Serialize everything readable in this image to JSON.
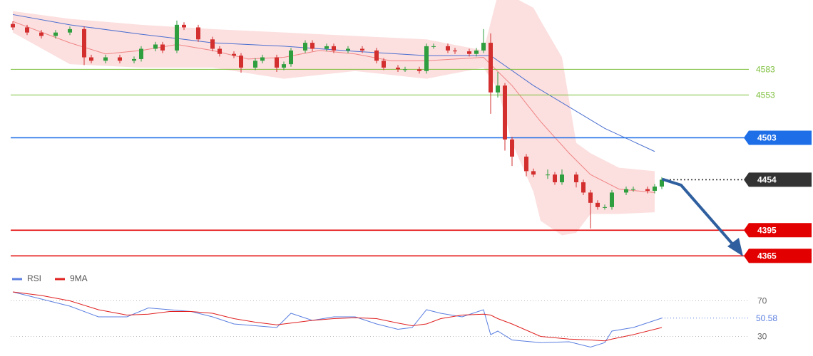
{
  "chart_data": [
    {
      "type": "candlestick",
      "xlim": [
        -0.3,
        112.2
      ],
      "ylim": [
        4347,
        4664
      ],
      "candles": {
        "x": [
          0,
          2,
          4,
          6,
          8,
          10,
          11,
          13,
          15,
          17,
          18,
          20,
          21,
          23,
          24,
          26,
          28,
          29,
          31,
          32,
          34,
          35,
          37,
          38,
          39,
          41,
          42,
          44,
          45,
          47,
          49,
          51,
          52,
          54,
          55,
          57,
          58,
          59,
          61,
          62,
          64,
          65,
          66,
          67,
          68,
          69,
          70,
          72,
          73,
          75,
          76,
          77,
          79,
          80,
          81,
          82,
          83,
          84,
          86,
          87,
          89,
          90,
          91
        ],
        "open": [
          4636,
          4632,
          4626,
          4622,
          4626,
          4630,
          4597,
          4593,
          4597,
          4593,
          4595,
          4607,
          4612,
          4605,
          4635,
          4632,
          4618,
          4607,
          4601,
          4599,
          4585,
          4593,
          4597,
          4585,
          4589,
          4605,
          4614,
          4607,
          4610,
          4605,
          4607,
          4605,
          4593,
          4585,
          4583,
          4583,
          4581,
          4610,
          4610,
          4605,
          4604,
          4601,
          4605,
          4614,
          4556,
          4564,
          4501,
          4481,
          4464,
          4460,
          4460,
          4451,
          4460,
          4451,
          4439,
          4427,
          4422,
          4422,
          4439,
          4443,
          4443,
          4441,
          4446
        ],
        "high": [
          4639,
          4635,
          4629,
          4629,
          4633,
          4633,
          4600,
          4600,
          4600,
          4598,
          4610,
          4615,
          4615,
          4640,
          4638,
          4635,
          4621,
          4610,
          4604,
          4602,
          4596,
          4600,
          4600,
          4592,
          4608,
          4617,
          4617,
          4613,
          4613,
          4610,
          4610,
          4608,
          4596,
          4588,
          4586,
          4586,
          4613,
          4613,
          4613,
          4608,
          4607,
          4608,
          4630,
          4625,
          4580,
          4567,
          4504,
          4484,
          4467,
          4466,
          4463,
          4466,
          4463,
          4454,
          4442,
          4430,
          4425,
          4442,
          4446,
          4446,
          4446,
          4449,
          4457
        ],
        "low": [
          4629,
          4623,
          4619,
          4619,
          4623,
          4588,
          4590,
          4590,
          4590,
          4590,
          4592,
          4604,
          4602,
          4602,
          4629,
          4615,
          4604,
          4598,
          4596,
          4579,
          4582,
          4590,
          4580,
          4582,
          4586,
          4602,
          4604,
          4604,
          4602,
          4602,
          4602,
          4590,
          4582,
          4580,
          4580,
          4578,
          4578,
          4607,
          4602,
          4601,
          4598,
          4598,
          4602,
          4531,
          4550,
          4488,
          4470,
          4458,
          4457,
          4455,
          4448,
          4448,
          4445,
          4436,
          4397,
          4419,
          4419,
          4419,
          4436,
          4440,
          4438,
          4438,
          4443
        ],
        "close": [
          4632,
          4626,
          4622,
          4626,
          4630,
          4597,
          4593,
          4597,
          4593,
          4595,
          4607,
          4612,
          4605,
          4635,
          4632,
          4618,
          4607,
          4601,
          4599,
          4585,
          4593,
          4597,
          4585,
          4589,
          4605,
          4614,
          4607,
          4610,
          4605,
          4607,
          4605,
          4593,
          4585,
          4583,
          4583,
          4581,
          4610,
          4610,
          4605,
          4604,
          4601,
          4605,
          4614,
          4556,
          4564,
          4501,
          4481,
          4464,
          4460,
          4460,
          4451,
          4460,
          4451,
          4439,
          4427,
          4422,
          4422,
          4439,
          4443,
          4443,
          4441,
          4446,
          4454
        ],
        "up_color": "#2e9e3e",
        "down_color": "#d32f2f"
      },
      "bands": {
        "x": [
          0,
          8,
          18,
          28,
          38,
          48,
          58,
          66,
          68,
          70,
          73,
          74,
          77,
          79,
          81,
          85,
          90
        ],
        "upper": [
          4651,
          4642,
          4635,
          4630,
          4626,
          4622,
          4618,
          4605,
          4670,
          4668,
          4655,
          4640,
          4597,
          4497,
          4485,
          4468,
          4464
        ],
        "lower": [
          4626,
          4589,
          4585,
          4585,
          4572,
          4581,
          4572,
          4585,
          4560,
          4497,
          4440,
          4406,
          4389,
          4392,
          4414,
          4414,
          4416
        ],
        "color": "#fcd9d9"
      },
      "series": [
        {
          "color": "#4a6fd0",
          "x": [
            0,
            8,
            18,
            28,
            38,
            48,
            58,
            67,
            73,
            78,
            83,
            90
          ],
          "values": [
            4647,
            4635,
            4624,
            4614,
            4610,
            4604,
            4599,
            4599,
            4564,
            4539,
            4514,
            4487
          ]
        },
        {
          "color": "#f08585",
          "x": [
            0,
            8,
            13,
            18,
            23,
            28,
            33,
            38,
            43,
            48,
            53,
            58,
            66,
            70,
            74,
            78,
            81,
            85,
            90
          ],
          "values": [
            4639,
            4614,
            4601,
            4605,
            4612,
            4605,
            4595,
            4597,
            4605,
            4601,
            4593,
            4593,
            4597,
            4564,
            4522,
            4485,
            4460,
            4443,
            4439
          ]
        }
      ],
      "levels": [
        {
          "value": 4583,
          "color": "#7cbf3a",
          "box": false,
          "dotted": false
        },
        {
          "value": 4553,
          "color": "#7cbf3a",
          "box": false,
          "dotted": false
        },
        {
          "value": 4503,
          "color": "#1e6ee8",
          "box": true,
          "dotted": false
        },
        {
          "value": 4454,
          "color": "#333333",
          "box": true,
          "dotted": true
        },
        {
          "value": 4395,
          "color": "#e30000",
          "box": true,
          "dotted": false
        },
        {
          "value": 4365,
          "color": "#e30000",
          "box": true,
          "dotted": false
        }
      ]
    },
    {
      "type": "line",
      "xlim": [
        -0.3,
        112.2
      ],
      "ylim": [
        15,
        84
      ],
      "yticks": [
        70,
        30
      ],
      "series": [
        {
          "name": "RSI",
          "color": "#5b7fe0",
          "x": [
            0,
            4,
            8,
            12,
            16,
            19,
            22,
            25,
            28,
            31,
            34,
            37,
            39,
            42,
            45,
            48,
            51,
            54,
            56,
            58,
            60,
            63,
            66,
            67,
            68,
            70,
            74,
            78,
            81,
            83,
            84,
            87,
            91
          ],
          "values": [
            80,
            72,
            64,
            52,
            52,
            62,
            60,
            58,
            52,
            44,
            42,
            40,
            56,
            48,
            52,
            52,
            44,
            38,
            40,
            60,
            56,
            52,
            60,
            32,
            36,
            26,
            23,
            24,
            18,
            23,
            36,
            40,
            50.58
          ]
        },
        {
          "name": "9MA",
          "color": "#e02020",
          "x": [
            0,
            4,
            8,
            12,
            16,
            19,
            22,
            25,
            28,
            31,
            34,
            37,
            39,
            42,
            45,
            48,
            51,
            54,
            56,
            58,
            60,
            63,
            66,
            67,
            68,
            70,
            74,
            78,
            81,
            83,
            84,
            87,
            91
          ],
          "values": [
            80,
            76,
            70,
            60,
            54,
            55,
            58,
            58,
            56,
            50,
            46,
            43,
            45,
            48,
            50,
            51,
            50,
            45,
            42,
            44,
            50,
            54,
            55,
            54,
            50,
            44,
            30,
            27,
            26,
            25,
            27,
            32,
            40
          ]
        }
      ],
      "last_value": 50.58
    }
  ]
}
